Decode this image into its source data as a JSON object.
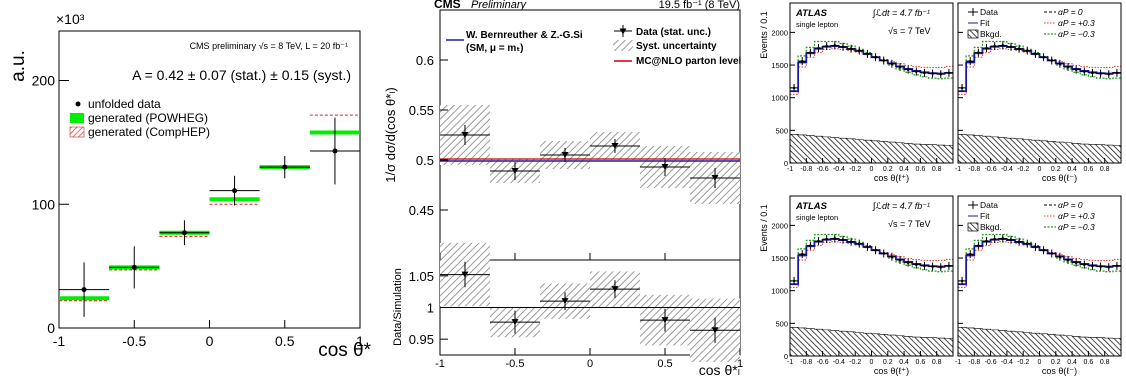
{
  "chart_data": [
    {
      "type": "scatter",
      "panel": "left",
      "exponent_label": "×10³",
      "ylabel": "a.u.",
      "xlabel": "cos θ*",
      "xlim": [
        -1,
        1
      ],
      "ylim": [
        0,
        240
      ],
      "x_ticks": [
        "-1",
        "-0.5",
        "0",
        "0.5",
        "1"
      ],
      "x_tick_values": [
        -1,
        -0.5,
        0,
        0.5,
        1
      ],
      "y_ticks": [
        "0",
        "100",
        "200"
      ],
      "y_tick_values": [
        0,
        100,
        200
      ],
      "header": "CMS preliminary √s = 8 TeV, L = 20 fb⁻¹",
      "result": "A = 0.42 ± 0.07 (stat.) ± 0.15 (syst.)",
      "legend": [
        "unfolded data",
        "generated (POWHEG)",
        "generated (CompHEP)"
      ],
      "bin_edges": [
        -1,
        -0.667,
        -0.333,
        0,
        0.333,
        0.667,
        1
      ],
      "data": {
        "values": [
          31,
          49,
          77,
          111,
          130,
          143
        ],
        "errors": [
          22,
          17,
          10,
          12,
          9,
          27
        ]
      },
      "powheg": [
        24,
        49,
        77,
        104,
        130,
        158
      ],
      "comphep": [
        22,
        47,
        74,
        100,
        130,
        172
      ],
      "colors": {
        "powheg": "#00ee00",
        "comphep": "#dd2222"
      }
    },
    {
      "type": "scatter",
      "panel": "middle",
      "experiment": "CMS",
      "status": "Preliminary",
      "lumi": "19.5 fb⁻¹ (8 TeV)",
      "ylabel": "1/σ dσ/d(cos θ*ₗ)",
      "ratio_ylabel": "Data/Simulation",
      "xlabel": "cos θ*ₗ",
      "xlim": [
        -1,
        1
      ],
      "ylim": [
        0.4,
        0.65
      ],
      "ratio_ylim": [
        0.925,
        1.075
      ],
      "x_ticks": [
        "-1",
        "-0.5",
        "0",
        "0.5",
        "1"
      ],
      "x_tick_values": [
        -1,
        -0.5,
        0,
        0.5,
        1
      ],
      "y_ticks": [
        "0.45",
        "0.5",
        "0.55",
        "0.6"
      ],
      "y_tick_values": [
        0.45,
        0.5,
        0.55,
        0.6
      ],
      "ratio_ticks": [
        "0.95",
        "1",
        "1.05"
      ],
      "ratio_tick_values": [
        0.95,
        1,
        1.05
      ],
      "legend_left": [
        "W. Bernreuther & Z.-G.Si",
        "(SM, μ = mₜ)"
      ],
      "legend_right": [
        "Data (stat. unc.)",
        "Syst. uncertainty",
        "MC@NLO parton level"
      ],
      "bin_edges": [
        -1,
        -0.667,
        -0.333,
        0,
        0.333,
        0.667,
        1
      ],
      "data": {
        "values": [
          0.525,
          0.489,
          0.505,
          0.514,
          0.493,
          0.482
        ],
        "errors": [
          0.01,
          0.009,
          0.007,
          0.007,
          0.009,
          0.01
        ]
      },
      "syst": [
        0.03,
        0.012,
        0.014,
        0.014,
        0.021,
        0.026
      ],
      "ratio": {
        "values": [
          1.052,
          0.977,
          1.01,
          1.029,
          0.98,
          0.964
        ],
        "errors": [
          0.02,
          0.018,
          0.014,
          0.014,
          0.018,
          0.02
        ]
      },
      "ratio_syst": [
        0.05,
        0.024,
        0.028,
        0.028,
        0.04,
        0.05
      ],
      "sm_value": 0.499,
      "mcnlo_value": 0.501,
      "colors": {
        "sm": "#1f1fa0",
        "mcnlo": "#cc0000"
      }
    },
    {
      "type": "line",
      "panel": "right",
      "experiment": "ATLAS",
      "channel": "single lepton",
      "lumi_text": "∫ℒdt = 4.7 fb⁻¹",
      "energy_text": "√s = 7 TeV",
      "ylabel": "Events / 0.1",
      "xlabel_plus": "cos θ(ℓ⁺)",
      "xlabel_minus": "cos θ(ℓ⁻)",
      "xlim": [
        -1,
        1
      ],
      "ylim": [
        0,
        2450
      ],
      "y_ticks": [
        "0",
        "500",
        "1000",
        "1500",
        "2000"
      ],
      "y_tick_values": [
        0,
        500,
        1000,
        1500,
        2000
      ],
      "x_ticks": [
        "-1",
        "-0.8",
        "-0.6",
        "-0.4",
        "-0.2",
        "0",
        "0.2",
        "0.4",
        "0.6",
        "0.8"
      ],
      "x_tick_values": [
        -1,
        -0.8,
        -0.6,
        -0.4,
        -0.2,
        0,
        0.2,
        0.4,
        0.6,
        0.8
      ],
      "legend_col1": [
        "Data",
        "Fit",
        "Bkgd."
      ],
      "legend_col2": [
        "αP = 0",
        "αP = +0.3",
        "αP = −0.3"
      ],
      "x_centers": [
        -0.95,
        -0.85,
        -0.75,
        -0.65,
        -0.55,
        -0.45,
        -0.35,
        -0.25,
        -0.15,
        -0.05,
        0.05,
        0.15,
        0.25,
        0.35,
        0.45,
        0.55,
        0.65,
        0.75,
        0.85,
        0.95
      ],
      "data": [
        1150,
        1560,
        1690,
        1760,
        1790,
        1800,
        1780,
        1750,
        1720,
        1670,
        1620,
        1570,
        1520,
        1470,
        1430,
        1400,
        1380,
        1370,
        1360,
        1380
      ],
      "fit": [
        1100,
        1540,
        1680,
        1750,
        1780,
        1790,
        1775,
        1745,
        1715,
        1670,
        1620,
        1570,
        1525,
        1480,
        1440,
        1410,
        1390,
        1375,
        1370,
        1380
      ],
      "alpha_plus": [
        1050,
        1470,
        1620,
        1690,
        1740,
        1750,
        1740,
        1720,
        1700,
        1660,
        1620,
        1585,
        1550,
        1520,
        1495,
        1475,
        1465,
        1460,
        1465,
        1480
      ],
      "alpha_minus": [
        1150,
        1640,
        1770,
        1860,
        1860,
        1860,
        1830,
        1790,
        1740,
        1690,
        1630,
        1570,
        1500,
        1440,
        1390,
        1350,
        1320,
        1300,
        1290,
        1300
      ],
      "bkgd": [
        440,
        430,
        420,
        410,
        400,
        390,
        380,
        370,
        360,
        350,
        340,
        330,
        320,
        310,
        300,
        290,
        285,
        280,
        275,
        270
      ],
      "colors": {
        "fit": "#1a1a9a",
        "alpha_plus": "#e03030",
        "alpha_minus": "#1f9a1f"
      }
    }
  ]
}
